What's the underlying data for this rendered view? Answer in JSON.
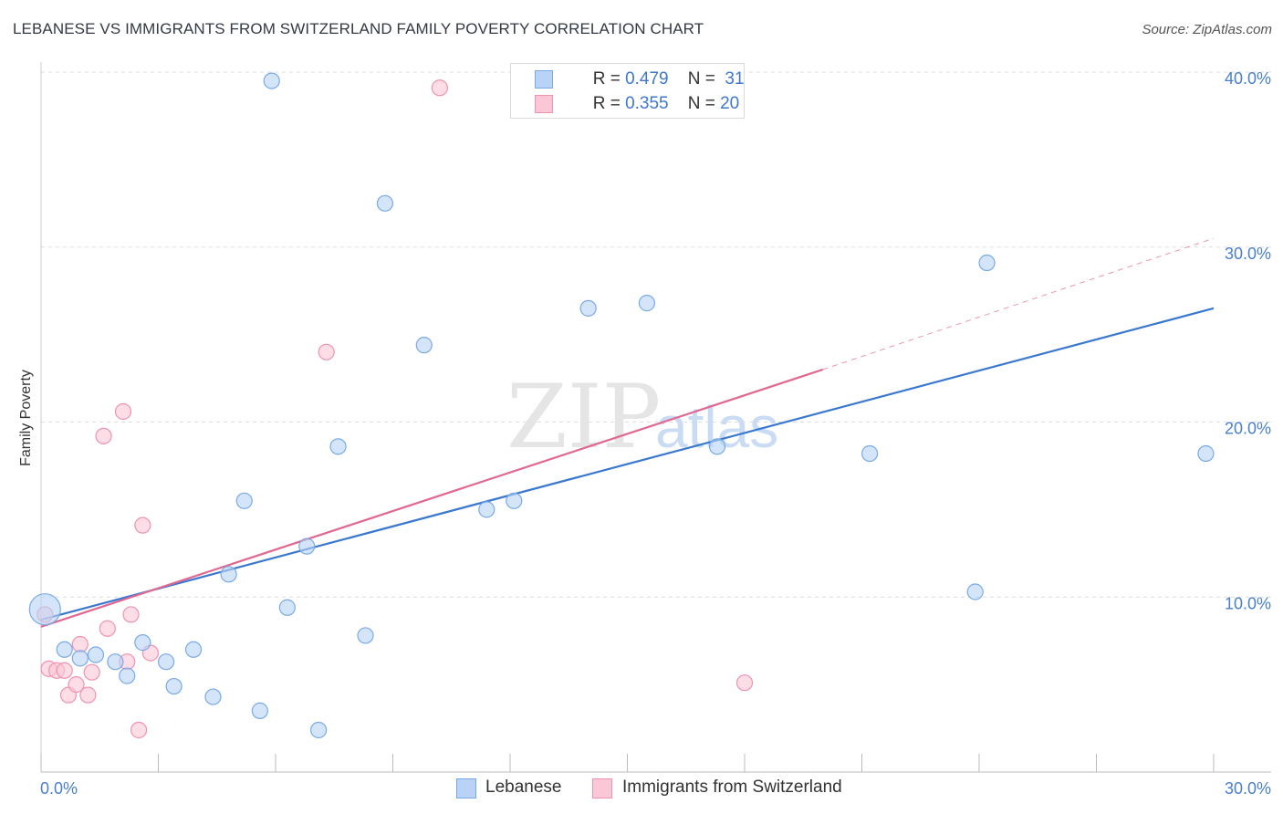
{
  "header": {
    "title": "LEBANESE VS IMMIGRANTS FROM SWITZERLAND FAMILY POVERTY CORRELATION CHART",
    "source": "Source: ZipAtlas.com"
  },
  "watermark": {
    "zip": "ZIP",
    "atlas": "atlas"
  },
  "legend_top": {
    "lebanese": {
      "r_label": "R = ",
      "r_value": "0.479",
      "n_label": "N = ",
      "n_value": "31"
    },
    "swiss": {
      "r_label": "R = ",
      "r_value": "0.355",
      "n_label": "N = ",
      "n_value": "20"
    }
  },
  "legend_bottom": {
    "lebanese": "Lebanese",
    "swiss": "Immigrants from Switzerland"
  },
  "colors": {
    "blue_fill": "#b8d3f5",
    "blue_stroke": "#7aaae6",
    "blue_line": "#3a78d0",
    "pink_fill": "#fbc6d6",
    "pink_stroke": "#ef93b1",
    "pink_line": "#e06892",
    "tick_text": "#4a7fcc",
    "grid": "#dddddd"
  },
  "chart_data": {
    "type": "scatter",
    "title": "LEBANESE VS IMMIGRANTS FROM SWITZERLAND FAMILY POVERTY CORRELATION CHART",
    "xlabel": "",
    "ylabel": "Family Poverty",
    "xlim": [
      0,
      30
    ],
    "ylim": [
      0,
      40
    ],
    "x_tick_labels": [
      "0.0%",
      "30.0%"
    ],
    "y_ticks": [
      10,
      20,
      30,
      40
    ],
    "y_tick_labels": [
      "10.0%",
      "20.0%",
      "30.0%",
      "40.0%"
    ],
    "grid": true,
    "series": [
      {
        "name": "Lebanese",
        "color": "blue",
        "points": [
          {
            "x": 0.1,
            "y": 9.3,
            "big": true
          },
          {
            "x": 0.6,
            "y": 7.0
          },
          {
            "x": 1.0,
            "y": 6.5
          },
          {
            "x": 1.4,
            "y": 6.7
          },
          {
            "x": 1.9,
            "y": 6.3
          },
          {
            "x": 2.2,
            "y": 5.5
          },
          {
            "x": 2.6,
            "y": 7.4
          },
          {
            "x": 3.2,
            "y": 6.3
          },
          {
            "x": 3.4,
            "y": 4.9
          },
          {
            "x": 3.9,
            "y": 7.0
          },
          {
            "x": 4.4,
            "y": 4.3
          },
          {
            "x": 4.8,
            "y": 11.3
          },
          {
            "x": 5.2,
            "y": 15.5
          },
          {
            "x": 5.6,
            "y": 3.5
          },
          {
            "x": 5.9,
            "y": 39.5
          },
          {
            "x": 6.3,
            "y": 9.4
          },
          {
            "x": 6.8,
            "y": 12.9
          },
          {
            "x": 7.1,
            "y": 2.4
          },
          {
            "x": 7.6,
            "y": 18.6
          },
          {
            "x": 8.3,
            "y": 7.8
          },
          {
            "x": 8.8,
            "y": 32.5
          },
          {
            "x": 9.8,
            "y": 24.4
          },
          {
            "x": 11.4,
            "y": 15.0
          },
          {
            "x": 12.1,
            "y": 15.5
          },
          {
            "x": 14.0,
            "y": 26.5
          },
          {
            "x": 15.5,
            "y": 26.8
          },
          {
            "x": 17.3,
            "y": 18.6
          },
          {
            "x": 21.2,
            "y": 18.2
          },
          {
            "x": 23.9,
            "y": 10.3
          },
          {
            "x": 24.2,
            "y": 29.1
          },
          {
            "x": 29.8,
            "y": 18.2
          }
        ],
        "trend": {
          "x0": 0,
          "y0": 8.7,
          "x1": 30,
          "y1": 26.5
        }
      },
      {
        "name": "Immigrants from Switzerland",
        "color": "pink",
        "points": [
          {
            "x": 0.1,
            "y": 9.0
          },
          {
            "x": 0.2,
            "y": 5.9
          },
          {
            "x": 0.4,
            "y": 5.8
          },
          {
            "x": 0.6,
            "y": 5.8
          },
          {
            "x": 0.7,
            "y": 4.4
          },
          {
            "x": 0.9,
            "y": 5.0
          },
          {
            "x": 1.0,
            "y": 7.3
          },
          {
            "x": 1.2,
            "y": 4.4
          },
          {
            "x": 1.3,
            "y": 5.7
          },
          {
            "x": 1.6,
            "y": 19.2
          },
          {
            "x": 1.7,
            "y": 8.2
          },
          {
            "x": 2.1,
            "y": 20.6
          },
          {
            "x": 2.2,
            "y": 6.3
          },
          {
            "x": 2.3,
            "y": 9.0
          },
          {
            "x": 2.5,
            "y": 2.4
          },
          {
            "x": 2.6,
            "y": 14.1
          },
          {
            "x": 2.8,
            "y": 6.8
          },
          {
            "x": 7.3,
            "y": 24.0
          },
          {
            "x": 10.2,
            "y": 39.1
          },
          {
            "x": 18.0,
            "y": 5.1
          }
        ],
        "trend": {
          "x0": 0,
          "y0": 8.3,
          "x1": 20,
          "y1": 23.0,
          "dash_to_x": 30,
          "dash_to_y": 30.5
        }
      }
    ]
  }
}
